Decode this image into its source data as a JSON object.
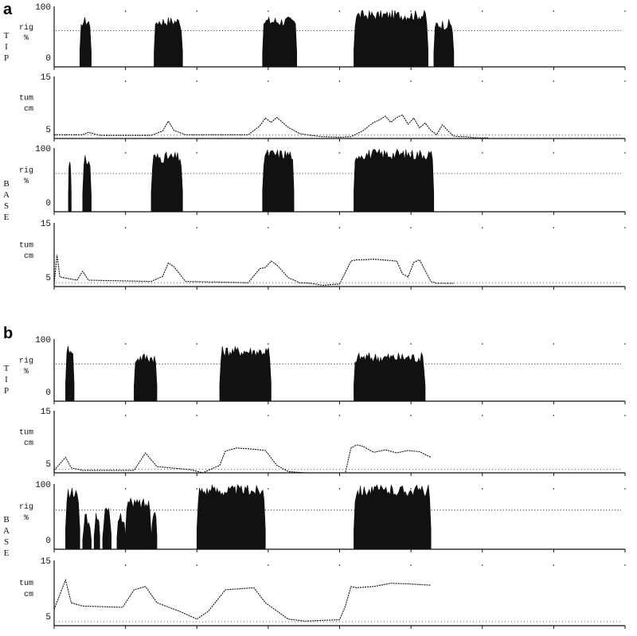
{
  "panels": [
    {
      "letter": "a",
      "tracks": [
        {
          "kind": "rig",
          "position": "TIP",
          "unit_top": "rig",
          "unit_bottom": "%",
          "ymax": "100",
          "ymin": "0"
        },
        {
          "kind": "tum",
          "position": "TIP",
          "unit_top": "tum",
          "unit_bottom": "cm",
          "ymax": "15",
          "ymin": "5"
        },
        {
          "kind": "rig",
          "position": "BASE",
          "unit_top": "rig",
          "unit_bottom": "%",
          "ymax": "100",
          "ymin": "0"
        },
        {
          "kind": "tum",
          "position": "BASE",
          "unit_top": "tum",
          "unit_bottom": "cm",
          "ymax": "15",
          "ymin": "5"
        }
      ],
      "side_labels": [
        "TIP",
        "BASE"
      ]
    },
    {
      "letter": "b",
      "tracks": [
        {
          "kind": "rig",
          "position": "TIP",
          "unit_top": "rig",
          "unit_bottom": "%",
          "ymax": "100",
          "ymin": "0"
        },
        {
          "kind": "tum",
          "position": "TIP",
          "unit_top": "tum",
          "unit_bottom": "cm",
          "ymax": "15",
          "ymin": "5"
        },
        {
          "kind": "rig",
          "position": "BASE",
          "unit_top": "rig",
          "unit_bottom": "%",
          "ymax": "100",
          "ymin": "0"
        },
        {
          "kind": "tum",
          "position": "BASE",
          "unit_top": "tum",
          "unit_bottom": "cm",
          "ymax": "15",
          "ymin": "5"
        }
      ],
      "side_labels": [
        "TIP",
        "BASE"
      ]
    }
  ],
  "colors": {
    "ink": "#111111",
    "background": "#ffffff"
  },
  "chart_data": [
    {
      "panel": "a",
      "type": "area",
      "xlim": [
        0,
        100
      ],
      "tracks": [
        {
          "track": "TIP rig",
          "ylim": [
            0,
            100
          ],
          "baseline": 60,
          "bursts": [
            [
              4.5,
              6.5,
              75
            ],
            [
              17.5,
              22.5,
              75
            ],
            [
              36.5,
              42.5,
              75
            ],
            [
              52.5,
              65.5,
              85
            ],
            [
              66.5,
              70.0,
              70
            ]
          ],
          "series": [
            {
              "values": []
            }
          ]
        },
        {
          "track": "TIP tum",
          "ylim": [
            5,
            15
          ],
          "series": [
            {
              "x": [
                0,
                5,
                6,
                8,
                17,
                19,
                20,
                21,
                23,
                34,
                36,
                37,
                38,
                39,
                41,
                43,
                45,
                47,
                50,
                52,
                54,
                56,
                57,
                58,
                59,
                60,
                61,
                62,
                63,
                64,
                65,
                66,
                67,
                68,
                69,
                70,
                71,
                72,
                73,
                74,
                76
              ],
              "values": [
                5.6,
                5.6,
                6.0,
                5.5,
                5.5,
                6.2,
                7.8,
                6.3,
                5.6,
                5.6,
                7.0,
                8.3,
                7.6,
                8.4,
                6.8,
                5.8,
                5.5,
                5.3,
                5.2,
                5.3,
                6.2,
                7.6,
                8.0,
                8.6,
                7.6,
                8.4,
                8.8,
                7.3,
                8.3,
                6.7,
                7.5,
                6.3,
                5.6,
                7.2,
                6.2,
                5.4,
                5.3,
                5.3,
                5.2,
                5.1,
                5.1
              ]
            }
          ]
        },
        {
          "track": "BASE rig",
          "ylim": [
            0,
            100
          ],
          "baseline": 60,
          "bursts": [
            [
              2.5,
              3.0,
              80
            ],
            [
              5.0,
              6.5,
              80
            ],
            [
              17.0,
              22.5,
              85
            ],
            [
              36.5,
              42.0,
              90
            ],
            [
              52.5,
              66.5,
              90
            ]
          ],
          "series": [
            {
              "values": []
            }
          ]
        },
        {
          "track": "BASE tum",
          "ylim": [
            5,
            15
          ],
          "series": [
            {
              "x": [
                0,
                0.5,
                1,
                4,
                5,
                6,
                17,
                19,
                20,
                21,
                23,
                34,
                36,
                37,
                38,
                39,
                41,
                43,
                45,
                47,
                50,
                52,
                53,
                54,
                56,
                60,
                61,
                62,
                63,
                64,
                65,
                66,
                67,
                70
              ],
              "values": [
                5.4,
                10.0,
                6.5,
                6.0,
                7.4,
                6.0,
                5.8,
                6.6,
                8.7,
                8.1,
                5.8,
                5.6,
                7.8,
                8.0,
                9.0,
                8.4,
                6.4,
                5.6,
                5.5,
                5.2,
                5.4,
                9.0,
                9.2,
                9.2,
                9.3,
                9.0,
                7.0,
                6.5,
                8.8,
                9.2,
                7.5,
                5.8,
                5.5,
                5.5
              ]
            }
          ]
        }
      ]
    },
    {
      "panel": "b",
      "type": "area",
      "xlim": [
        0,
        100
      ],
      "tracks": [
        {
          "track": "TIP rig",
          "ylim": [
            0,
            100
          ],
          "baseline": 60,
          "bursts": [
            [
              2.0,
              3.5,
              85
            ],
            [
              14.0,
              18.0,
              70
            ],
            [
              29.0,
              38.0,
              80
            ],
            [
              52.5,
              65.0,
              70
            ]
          ],
          "series": [
            {
              "values": []
            }
          ]
        },
        {
          "track": "TIP tum",
          "ylim": [
            5,
            15
          ],
          "series": [
            {
              "x": [
                0,
                2,
                3,
                5,
                14,
                16,
                18,
                24,
                26,
                29,
                30,
                32,
                35,
                37,
                39,
                41,
                44,
                47,
                49,
                51,
                52,
                53,
                54,
                56,
                58,
                60,
                62,
                64,
                66
              ],
              "values": [
                5.4,
                7.5,
                5.8,
                5.4,
                5.4,
                8.2,
                6.0,
                5.5,
                5.0,
                6.2,
                8.5,
                9.0,
                8.8,
                8.6,
                6.2,
                5.2,
                5.0,
                5.0,
                5.0,
                5.0,
                9.0,
                9.5,
                9.3,
                8.3,
                8.7,
                8.2,
                8.6,
                8.4,
                7.5
              ]
            }
          ]
        },
        {
          "track": "BASE rig",
          "ylim": [
            0,
            100
          ],
          "baseline": 60,
          "bursts": [
            [
              2.0,
              4.5,
              85
            ],
            [
              5.0,
              6.5,
              45
            ],
            [
              7.0,
              8.0,
              50
            ],
            [
              8.5,
              10.0,
              55
            ],
            [
              11.0,
              12.5,
              50
            ],
            [
              12.5,
              17.0,
              70
            ],
            [
              17.0,
              18.0,
              55
            ],
            [
              25.0,
              37.0,
              90
            ],
            [
              52.5,
              66.0,
              90
            ]
          ],
          "series": [
            {
              "values": []
            }
          ]
        },
        {
          "track": "BASE tum",
          "ylim": [
            5,
            15
          ],
          "series": [
            {
              "x": [
                0,
                2,
                3,
                5,
                12,
                14,
                16,
                18,
                22,
                25,
                27,
                30,
                35,
                37,
                41,
                44,
                47,
                50,
                51,
                52,
                53,
                56,
                59,
                62,
                66
              ],
              "values": [
                7.5,
                12.0,
                8.5,
                8.0,
                7.8,
                10.5,
                11.0,
                8.5,
                7.2,
                6.0,
                7.2,
                10.5,
                10.8,
                8.5,
                6.0,
                5.7,
                5.8,
                5.9,
                8.0,
                11.0,
                10.8,
                11.0,
                11.5,
                11.4,
                11.2
              ]
            }
          ]
        }
      ]
    }
  ]
}
